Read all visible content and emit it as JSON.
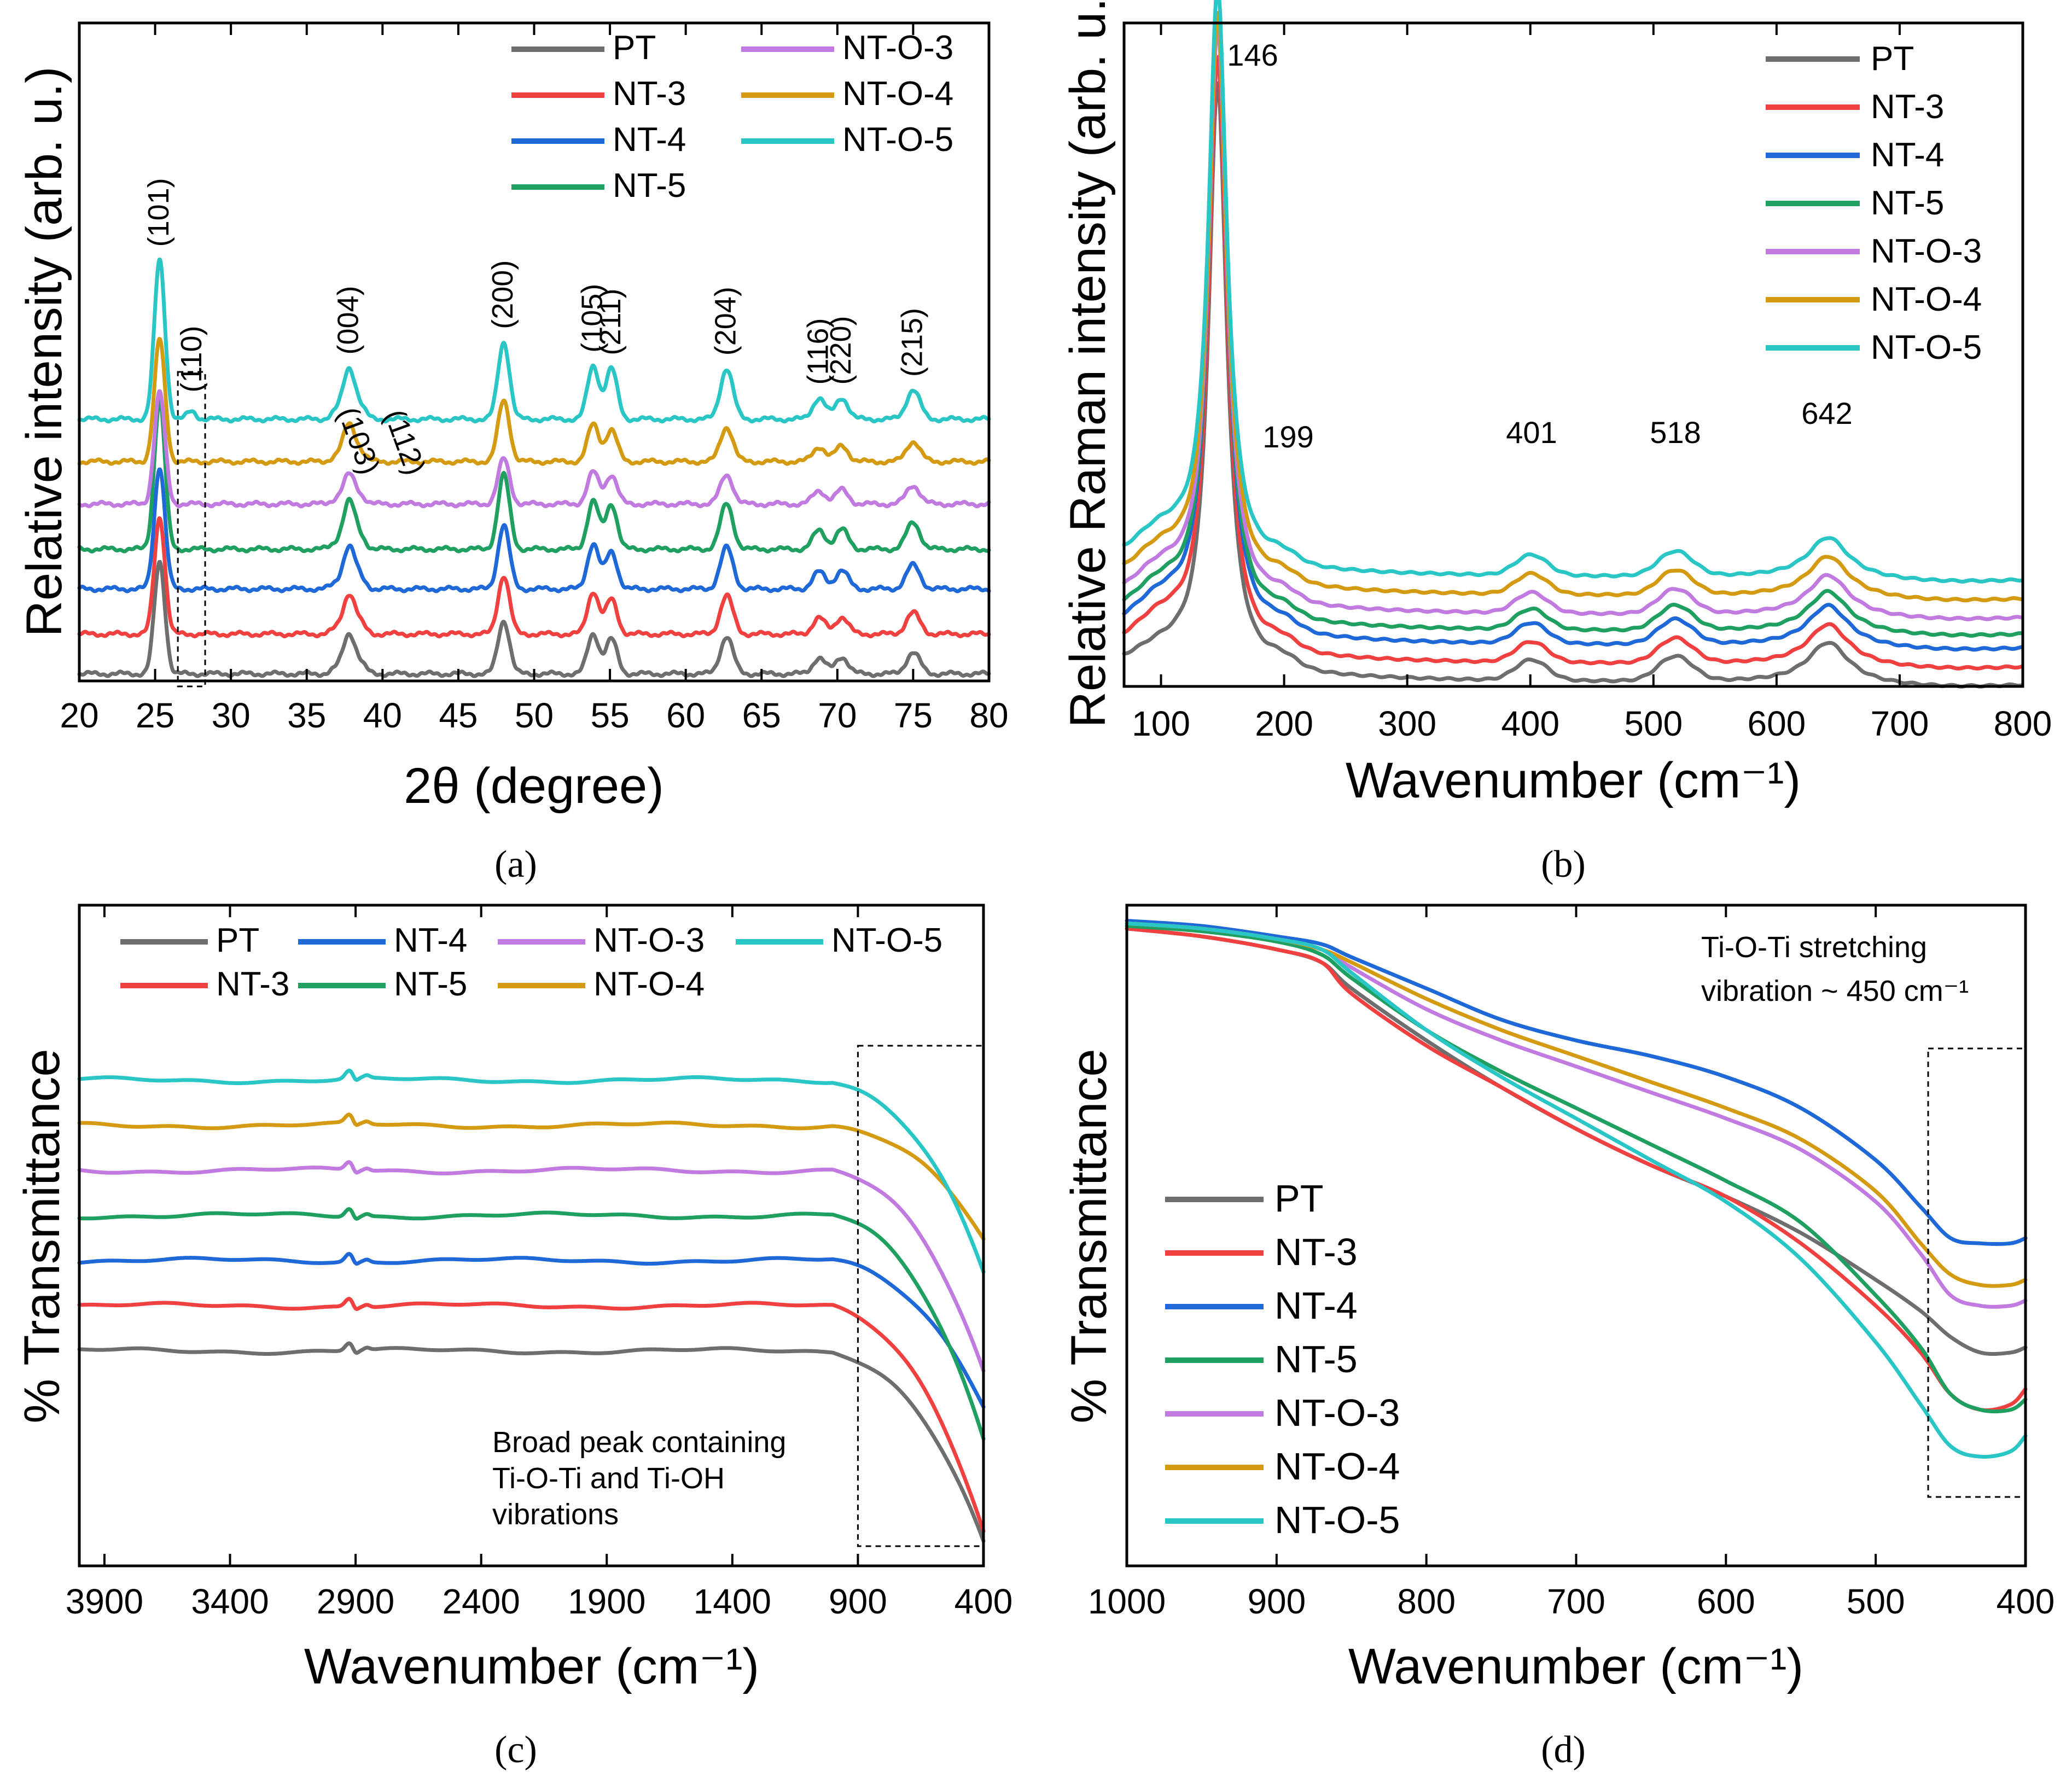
{
  "colors": {
    "PT": "#6e6e6e",
    "NT-3": "#f04040",
    "NT-4": "#1f68d8",
    "NT-5": "#1fa060",
    "NT-O-3": "#c07ae0",
    "NT-O-4": "#d39a12",
    "NT-O-5": "#2ac6c6"
  },
  "chart_data": [
    {
      "panel": "a",
      "type": "line",
      "caption": "(a)",
      "xlabel": "2θ (degree)",
      "ylabel": "Relative intensity (arb. u.)",
      "xlim": [
        20,
        80
      ],
      "xticks": [
        20,
        25,
        30,
        35,
        40,
        45,
        50,
        55,
        60,
        65,
        70,
        75,
        80
      ],
      "legend": [
        "PT",
        "NT-3",
        "NT-4",
        "NT-5",
        "NT-O-3",
        "NT-O-4",
        "NT-O-5"
      ],
      "legend_position": "top-right",
      "offsets": [
        0.0,
        0.75,
        1.6,
        2.35,
        3.2,
        4.0,
        4.8
      ],
      "peaks": [
        {
          "center": 25.3,
          "width": 0.35,
          "heights": [
            2.1,
            2.2,
            2.3,
            2.8,
            2.1,
            2.3,
            3.0
          ]
        },
        {
          "center": 27.4,
          "width": 0.3,
          "heights": [
            0.0,
            0.0,
            0.0,
            0.0,
            0.0,
            0.0,
            0.15
          ]
        },
        {
          "center": 36.9,
          "width": 0.35,
          "heights": [
            0.08,
            0.08,
            0.08,
            0.1,
            0.08,
            0.08,
            0.12
          ]
        },
        {
          "center": 37.8,
          "width": 0.4,
          "heights": [
            0.75,
            0.75,
            0.8,
            0.9,
            0.55,
            0.7,
            0.95
          ]
        },
        {
          "center": 38.6,
          "width": 0.35,
          "heights": [
            0.15,
            0.15,
            0.15,
            0.18,
            0.12,
            0.15,
            0.18
          ]
        },
        {
          "center": 48.0,
          "width": 0.38,
          "heights": [
            1.0,
            1.1,
            1.2,
            1.4,
            0.85,
            1.15,
            1.45
          ]
        },
        {
          "center": 53.9,
          "width": 0.38,
          "heights": [
            0.75,
            0.8,
            0.85,
            0.9,
            0.6,
            0.7,
            1.0
          ]
        },
        {
          "center": 55.1,
          "width": 0.38,
          "heights": [
            0.65,
            0.65,
            0.7,
            0.85,
            0.55,
            0.6,
            0.95
          ]
        },
        {
          "center": 62.7,
          "width": 0.42,
          "heights": [
            0.7,
            0.72,
            0.78,
            0.85,
            0.55,
            0.65,
            0.95
          ]
        },
        {
          "center": 68.8,
          "width": 0.42,
          "heights": [
            0.3,
            0.3,
            0.32,
            0.35,
            0.25,
            0.28,
            0.4
          ]
        },
        {
          "center": 70.3,
          "width": 0.42,
          "heights": [
            0.32,
            0.32,
            0.35,
            0.37,
            0.27,
            0.3,
            0.4
          ]
        },
        {
          "center": 75.0,
          "width": 0.45,
          "heights": [
            0.4,
            0.4,
            0.45,
            0.5,
            0.35,
            0.38,
            0.55
          ]
        }
      ],
      "annotations": [
        {
          "text": "(101)",
          "x": 25.3
        },
        {
          "text": "(110)",
          "x": 27.4
        },
        {
          "text": "(103)",
          "x": 36.9
        },
        {
          "text": "(004)",
          "x": 37.8
        },
        {
          "text": "(112)",
          "x": 38.6
        },
        {
          "text": "(200)",
          "x": 48.0
        },
        {
          "text": "(105)",
          "x": 53.9
        },
        {
          "text": "(211)",
          "x": 55.1
        },
        {
          "text": "(204)",
          "x": 62.7
        },
        {
          "text": "(116)",
          "x": 68.8
        },
        {
          "text": "(220)",
          "x": 70.3
        },
        {
          "text": "(215)",
          "x": 75.0
        }
      ],
      "highlight_range_x": [
        26.5,
        28.3
      ]
    },
    {
      "panel": "b",
      "type": "line",
      "caption": "(b)",
      "xlabel": "Wavenumber (cm⁻¹)",
      "ylabel": "Relative Raman intensity (arb. u.)",
      "xlim": [
        70,
        800
      ],
      "xticks": [
        100,
        200,
        300,
        400,
        500,
        600,
        700,
        800
      ],
      "legend": [
        "PT",
        "NT-3",
        "NT-4",
        "NT-5",
        "NT-O-3",
        "NT-O-4",
        "NT-O-5"
      ],
      "legend_position": "top-right",
      "offsets": [
        0.0,
        0.22,
        0.45,
        0.62,
        0.82,
        1.05,
        1.28
      ],
      "peak_labels": [
        146,
        199,
        401,
        518,
        642
      ],
      "main_peak_heights": [
        7.2,
        7.3,
        7.6,
        7.3,
        7.1,
        7.0,
        7.1
      ],
      "minor_peak_heights": {
        "199": 0.12,
        "401": 0.25,
        "518": 0.3,
        "642": 0.5
      }
    },
    {
      "panel": "c",
      "type": "line",
      "caption": "(c)",
      "xlabel": "Wavenumber (cm⁻¹)",
      "ylabel": "% Transmittance",
      "xlim": [
        4000,
        400
      ],
      "xticks": [
        3900,
        3400,
        2900,
        2400,
        1900,
        1400,
        900,
        400
      ],
      "legend": [
        "PT",
        "NT-3",
        "NT-4",
        "NT-5",
        "NT-O-3",
        "NT-O-4",
        "NT-O-5"
      ],
      "legend_position": "top",
      "baselines": [
        0.0,
        0.55,
        1.1,
        1.65,
        2.2,
        2.75,
        3.3
      ],
      "end_drops": [
        2.35,
        2.75,
        1.75,
        2.7,
        2.45,
        1.4,
        2.35
      ],
      "note": [
        "Broad peak containing",
        "Ti-O-Ti and Ti-OH",
        "vibrations"
      ],
      "highlight_range_x": [
        900,
        400
      ]
    },
    {
      "panel": "d",
      "type": "line",
      "caption": "(d)",
      "xlabel": "Wavenumber (cm⁻¹)",
      "ylabel": "% Transmittance",
      "xlim": [
        1000,
        400
      ],
      "xticks": [
        1000,
        900,
        800,
        700,
        600,
        500,
        400
      ],
      "legend": [
        "PT",
        "NT-3",
        "NT-4",
        "NT-5",
        "NT-O-3",
        "NT-O-4",
        "NT-O-5"
      ],
      "legend_position": "bottom-left",
      "x": [
        1000,
        950,
        900,
        870,
        850,
        800,
        750,
        700,
        650,
        600,
        550,
        500,
        470,
        450,
        430,
        410,
        400
      ],
      "series": [
        {
          "name": "PT",
          "values": [
            97.5,
            96,
            93.5,
            91,
            86,
            76,
            67,
            59,
            52,
            46,
            39,
            30,
            24,
            19,
            16,
            16,
            17
          ]
        },
        {
          "name": "NT-3",
          "values": [
            97.5,
            96,
            93.5,
            91,
            85,
            75,
            67,
            59,
            52,
            46,
            37,
            25,
            16,
            8,
            5,
            6,
            9
          ]
        },
        {
          "name": "NT-4",
          "values": [
            99,
            98,
            96,
            94.5,
            92,
            86,
            80,
            76,
            73,
            69,
            63,
            53,
            44,
            38,
            37,
            37,
            38
          ]
        },
        {
          "name": "NT-5",
          "values": [
            98,
            97,
            95,
            92.5,
            88,
            78,
            70,
            63,
            56,
            49,
            41,
            27,
            17,
            8,
            5,
            5,
            7
          ]
        },
        {
          "name": "NT-O-3",
          "values": [
            98.5,
            97.5,
            95.5,
            93.5,
            90,
            82,
            76,
            71,
            66,
            61,
            55,
            45,
            35,
            27,
            25,
            25,
            26
          ]
        },
        {
          "name": "NT-O-4",
          "values": [
            98.5,
            97.5,
            95.5,
            93.5,
            91,
            84,
            78,
            73,
            68,
            63,
            57,
            47,
            37,
            31,
            29,
            29,
            30
          ]
        },
        {
          "name": "NT-O-5",
          "values": [
            98.5,
            97.5,
            95.5,
            93.5,
            89,
            78,
            69,
            61,
            53,
            45,
            34,
            18,
            6,
            -2,
            -4,
            -3,
            0
          ]
        }
      ],
      "ylim": [
        -25,
        102
      ],
      "note": [
        "Ti-O-Ti stretching",
        "vibration ~ 450 cm⁻¹"
      ],
      "highlight_range_x": [
        465,
        400
      ]
    }
  ]
}
